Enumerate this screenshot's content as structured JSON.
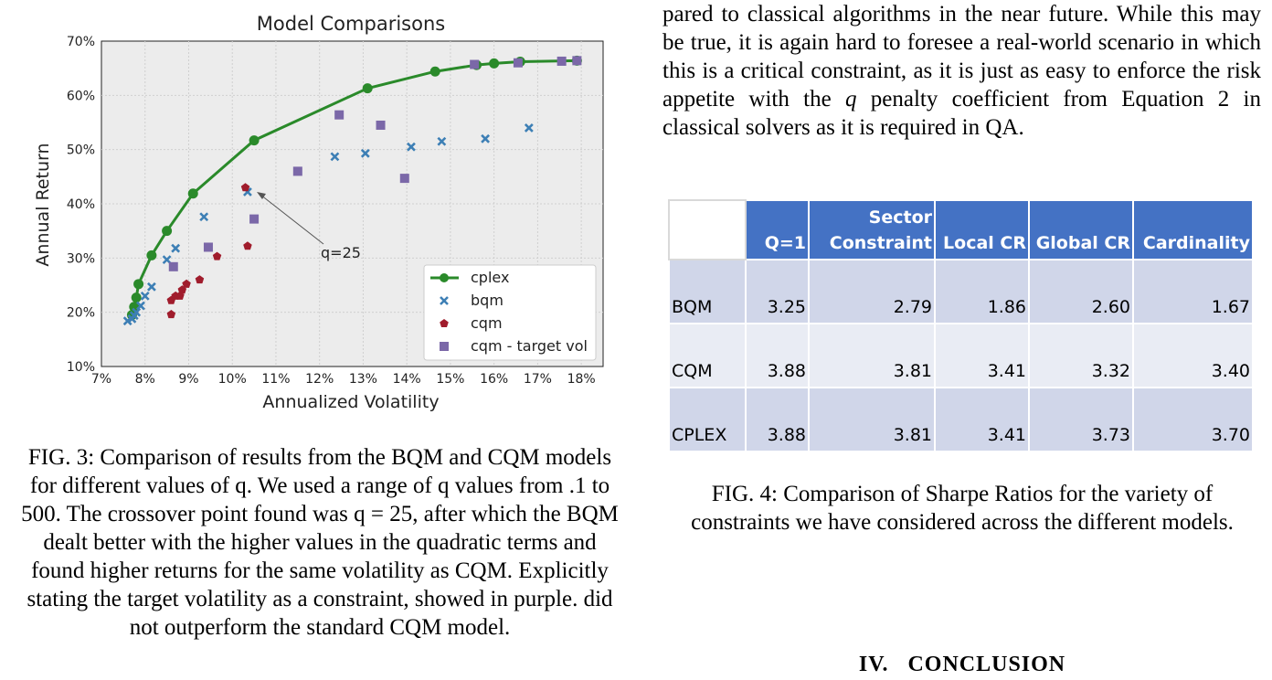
{
  "chart_data": {
    "type": "scatter",
    "title": "Model Comparisons",
    "xlabel": "Annualized Volatility",
    "ylabel": "Annual Return",
    "xlim": [
      7,
      18.5
    ],
    "ylim": [
      10,
      70
    ],
    "xticks": [
      "7%",
      "8%",
      "9%",
      "10%",
      "11%",
      "12%",
      "13%",
      "14%",
      "15%",
      "16%",
      "17%",
      "18%"
    ],
    "yticks": [
      "10%",
      "20%",
      "30%",
      "40%",
      "50%",
      "60%",
      "70%"
    ],
    "grid": true,
    "legend_position": "lower-right",
    "annotation": {
      "text": "q=25",
      "x": 10.3,
      "y": 42.2
    },
    "series": [
      {
        "name": "cplex",
        "marker": "circle",
        "line": true,
        "color": "#2a8a2a",
        "x": [
          7.7,
          7.75,
          7.8,
          7.85,
          8.15,
          8.5,
          9.1,
          10.5,
          13.1,
          14.65,
          15.6,
          16.0,
          16.6,
          17.9
        ],
        "y": [
          19.5,
          21.0,
          22.7,
          25.2,
          30.5,
          35.0,
          41.9,
          51.7,
          61.3,
          64.4,
          65.6,
          65.9,
          66.2,
          66.4
        ]
      },
      {
        "name": "bqm",
        "marker": "x",
        "line": false,
        "color": "#3d7fb5",
        "x": [
          7.6,
          7.7,
          7.75,
          7.9,
          8.0,
          8.15,
          8.5,
          8.7,
          9.35,
          10.35,
          12.35,
          13.05,
          14.1,
          14.8,
          15.8,
          16.8,
          7.8
        ],
        "y": [
          18.4,
          18.8,
          19.4,
          21.2,
          23.0,
          24.7,
          29.7,
          31.8,
          37.6,
          42.2,
          48.7,
          49.3,
          50.5,
          51.5,
          52.0,
          54.0,
          20.0
        ]
      },
      {
        "name": "cqm",
        "marker": "pentagon",
        "line": false,
        "color": "#a01c2c",
        "x": [
          8.6,
          8.6,
          8.7,
          8.8,
          8.85,
          8.95,
          9.25,
          9.65,
          10.35,
          10.3
        ],
        "y": [
          19.6,
          22.2,
          23.0,
          23.0,
          24.1,
          25.2,
          26.0,
          30.3,
          32.2,
          43.0
        ]
      },
      {
        "name": "cqm - target vol",
        "marker": "square",
        "line": false,
        "color": "#7b68a8",
        "x": [
          8.65,
          9.45,
          10.5,
          11.5,
          12.45,
          13.4,
          13.95,
          15.55,
          16.55,
          17.55,
          17.9
        ],
        "y": [
          28.4,
          32.0,
          37.2,
          46.0,
          56.4,
          54.5,
          44.7,
          65.7,
          66.0,
          66.3,
          66.4
        ]
      }
    ]
  },
  "left_caption": "FIG. 3: Comparison of results from the BQM and CQM models for different values of q. We used a range of q values from .1 to 500. The crossover point found was q = 25, after which the BQM dealt better with the higher values in the quadratic terms and found higher returns for the same volatility as CQM. Explicitly stating the target volatility as a constraint, showed in purple. did not outperform the standard CQM model.",
  "right_paragraph": {
    "before_q": "pared to classical algorithms in the near future. While this may be true, it is again hard to foresee a real-world scenario in which this is a critical constraint, as it is just as easy to enforce the risk appetite with the ",
    "q": "q",
    "after_q": " penalty coefficient from Equation 2 in classical solvers as it is required in QA."
  },
  "table": {
    "headers": [
      "",
      "Q=1",
      "Sector Constraint",
      "Local CR",
      "Global CR",
      "Cardinality"
    ],
    "rows": [
      [
        "BQM",
        "3.25",
        "2.79",
        "1.86",
        "2.60",
        "1.67"
      ],
      [
        "CQM",
        "3.88",
        "3.81",
        "3.41",
        "3.32",
        "3.40"
      ],
      [
        "CPLEX",
        "3.88",
        "3.81",
        "3.41",
        "3.73",
        "3.70"
      ]
    ]
  },
  "right_caption": "FIG. 4: Comparison of Sharpe Ratios for the variety of constraints we have considered across the different models.",
  "section_heading": "IV.   CONCLUSION"
}
